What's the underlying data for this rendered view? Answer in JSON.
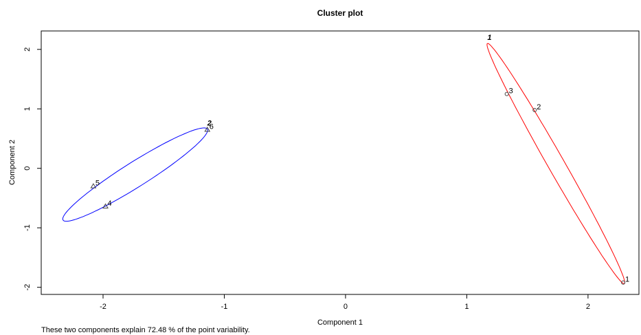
{
  "chart_data": {
    "type": "scatter",
    "title": "Cluster plot",
    "x_label": "Component 1",
    "y_label": "Component 2",
    "footnote": "These two components explain 72.48 % of the point variability.",
    "xlim": [
      -2.51,
      2.42
    ],
    "ylim": [
      -2.12,
      2.31
    ],
    "xticks": [
      -2,
      -1,
      0,
      1,
      2
    ],
    "yticks": [
      -2,
      -1,
      0,
      1,
      2
    ],
    "point_label_color": "#1f8b1f",
    "series": [
      {
        "name": "1",
        "color": "#ff0000",
        "marker": "circle",
        "x": [
          2.29,
          1.56,
          1.33
        ],
        "y": [
          -1.92,
          0.98,
          1.25
        ],
        "point_labels": [
          "1",
          "2",
          "3"
        ],
        "ellipse": {
          "center": [
            1.735,
            0.08
          ],
          "major": [
            -0.565,
            2.02
          ],
          "minor": [
            0.059,
            0.069
          ]
        }
      },
      {
        "name": "2",
        "color": "#0000ff",
        "marker": "triangle",
        "x": [
          -1.98,
          -2.08,
          -1.14
        ],
        "y": [
          -0.64,
          -0.3,
          0.65
        ],
        "point_labels": [
          "4",
          "5",
          "6"
        ],
        "ellipse": {
          "center": [
            -1.735,
            -0.105
          ],
          "major": [
            0.595,
            0.765
          ],
          "minor": [
            0.054,
            -0.176
          ]
        }
      }
    ]
  }
}
